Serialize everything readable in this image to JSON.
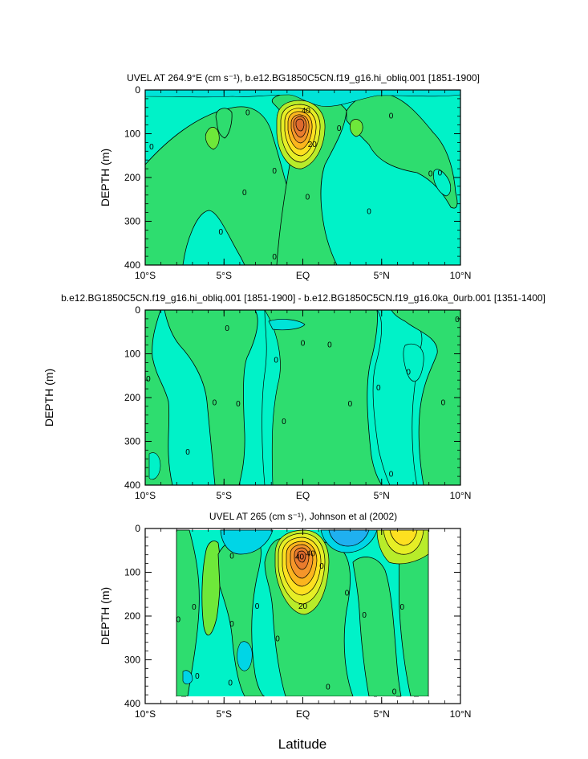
{
  "figure": {
    "shared_xlabel": "Latitude",
    "shared_ylabel": "DEPTH (m)"
  },
  "chart_data": [
    {
      "type": "heatmap",
      "title": "UVEL AT 264.9°E (cm s⁻¹), b.e12.BG1850C5CN.f19_g16.hi_obliq.001 [1851-1900]",
      "ylabel": "DEPTH (m)",
      "xlabel": "",
      "xlim": [
        -10,
        10
      ],
      "ylim": [
        400,
        0
      ],
      "x_ticks": [
        -10,
        -5,
        0,
        5,
        10
      ],
      "x_tick_labels": [
        "10°S",
        "5°S",
        "EQ",
        "5°N",
        "10°N"
      ],
      "y_ticks": [
        0,
        100,
        200,
        300,
        400
      ],
      "contour_labels": [
        {
          "text": "0",
          "x": -1.8,
          "y": 185
        },
        {
          "text": "0",
          "x": -5.2,
          "y": 325
        },
        {
          "text": "0",
          "x": -3.7,
          "y": 235
        },
        {
          "text": "0",
          "x": -1.8,
          "y": 382
        },
        {
          "text": "0",
          "x": 0.3,
          "y": 245
        },
        {
          "text": "0",
          "x": 2.3,
          "y": 88
        },
        {
          "text": "0",
          "x": 4.2,
          "y": 278
        },
        {
          "text": "0",
          "x": 5.6,
          "y": 60
        },
        {
          "text": "0",
          "x": 8.1,
          "y": 192
        },
        {
          "text": "0",
          "x": 8.7,
          "y": 190
        },
        {
          "text": "0",
          "x": -9.6,
          "y": 130
        },
        {
          "text": "0",
          "x": -3.5,
          "y": 52
        },
        {
          "text": "40",
          "x": 0.2,
          "y": 48
        },
        {
          "text": "20",
          "x": 0.6,
          "y": 125
        }
      ]
    },
    {
      "type": "heatmap",
      "title": "b.e12.BG1850C5CN.f19_g16.hi_obliq.001 [1851-1900] - b.e12.BG1850C5CN.f19_g16.0ka_0urb.001 [1351-1400]",
      "ylabel": "",
      "xlabel": "",
      "xlim": [
        -10,
        10
      ],
      "ylim": [
        400,
        0
      ],
      "x_ticks": [
        -10,
        -5,
        0,
        5,
        10
      ],
      "x_tick_labels": [
        "10°S",
        "5°S",
        "EQ",
        "5°N",
        "10°N"
      ],
      "y_ticks": [
        0,
        100,
        200,
        300,
        400
      ],
      "contour_labels": [
        {
          "text": "0",
          "x": -9.8,
          "y": 158
        },
        {
          "text": "0",
          "x": -4.8,
          "y": 42
        },
        {
          "text": "0",
          "x": -5.6,
          "y": 212
        },
        {
          "text": "0",
          "x": -4.1,
          "y": 215
        },
        {
          "text": "0",
          "x": -1.7,
          "y": 115
        },
        {
          "text": "0",
          "x": -1.2,
          "y": 255
        },
        {
          "text": "0",
          "x": 0.0,
          "y": 76
        },
        {
          "text": "0",
          "x": 1.7,
          "y": 80
        },
        {
          "text": "0",
          "x": 3.0,
          "y": 215
        },
        {
          "text": "0",
          "x": 4.8,
          "y": 178
        },
        {
          "text": "0",
          "x": 5.6,
          "y": 375
        },
        {
          "text": "0",
          "x": 6.7,
          "y": 142
        },
        {
          "text": "0",
          "x": 8.9,
          "y": 212
        },
        {
          "text": "0",
          "x": 9.8,
          "y": 22
        },
        {
          "text": "0",
          "x": -7.3,
          "y": 325
        }
      ]
    },
    {
      "type": "heatmap",
      "title": "UVEL AT 265 (cm s⁻¹), Johnson et al (2002)",
      "ylabel": "DEPTH (m)",
      "xlabel": "Latitude",
      "xlim": [
        -10,
        10
      ],
      "ylim": [
        400,
        0
      ],
      "x_ticks": [
        -10,
        -5,
        0,
        5,
        10
      ],
      "x_tick_labels": [
        "10°S",
        "5°S",
        "EQ",
        "5°N",
        "10°N"
      ],
      "y_ticks": [
        0,
        100,
        200,
        300,
        400
      ],
      "contour_labels": [
        {
          "text": "0",
          "x": -7.9,
          "y": 208
        },
        {
          "text": "0",
          "x": -6.9,
          "y": 180
        },
        {
          "text": "0",
          "x": -4.5,
          "y": 63
        },
        {
          "text": "0",
          "x": -4.5,
          "y": 218
        },
        {
          "text": "0",
          "x": -2.9,
          "y": 178
        },
        {
          "text": "0",
          "x": -1.6,
          "y": 252
        },
        {
          "text": "0",
          "x": 1.2,
          "y": 86
        },
        {
          "text": "0",
          "x": 2.8,
          "y": 148
        },
        {
          "text": "0",
          "x": 3.9,
          "y": 198
        },
        {
          "text": "0",
          "x": 6.3,
          "y": 180
        },
        {
          "text": "0",
          "x": 5.8,
          "y": 373
        },
        {
          "text": "0",
          "x": 1.6,
          "y": 362
        },
        {
          "text": "0",
          "x": -4.6,
          "y": 353
        },
        {
          "text": "0",
          "x": -6.7,
          "y": 338
        },
        {
          "text": "40",
          "x": 0.5,
          "y": 58
        },
        {
          "text": "20",
          "x": 0.0,
          "y": 178
        },
        {
          "text": "40",
          "x": -0.2,
          "y": 65
        }
      ]
    }
  ]
}
